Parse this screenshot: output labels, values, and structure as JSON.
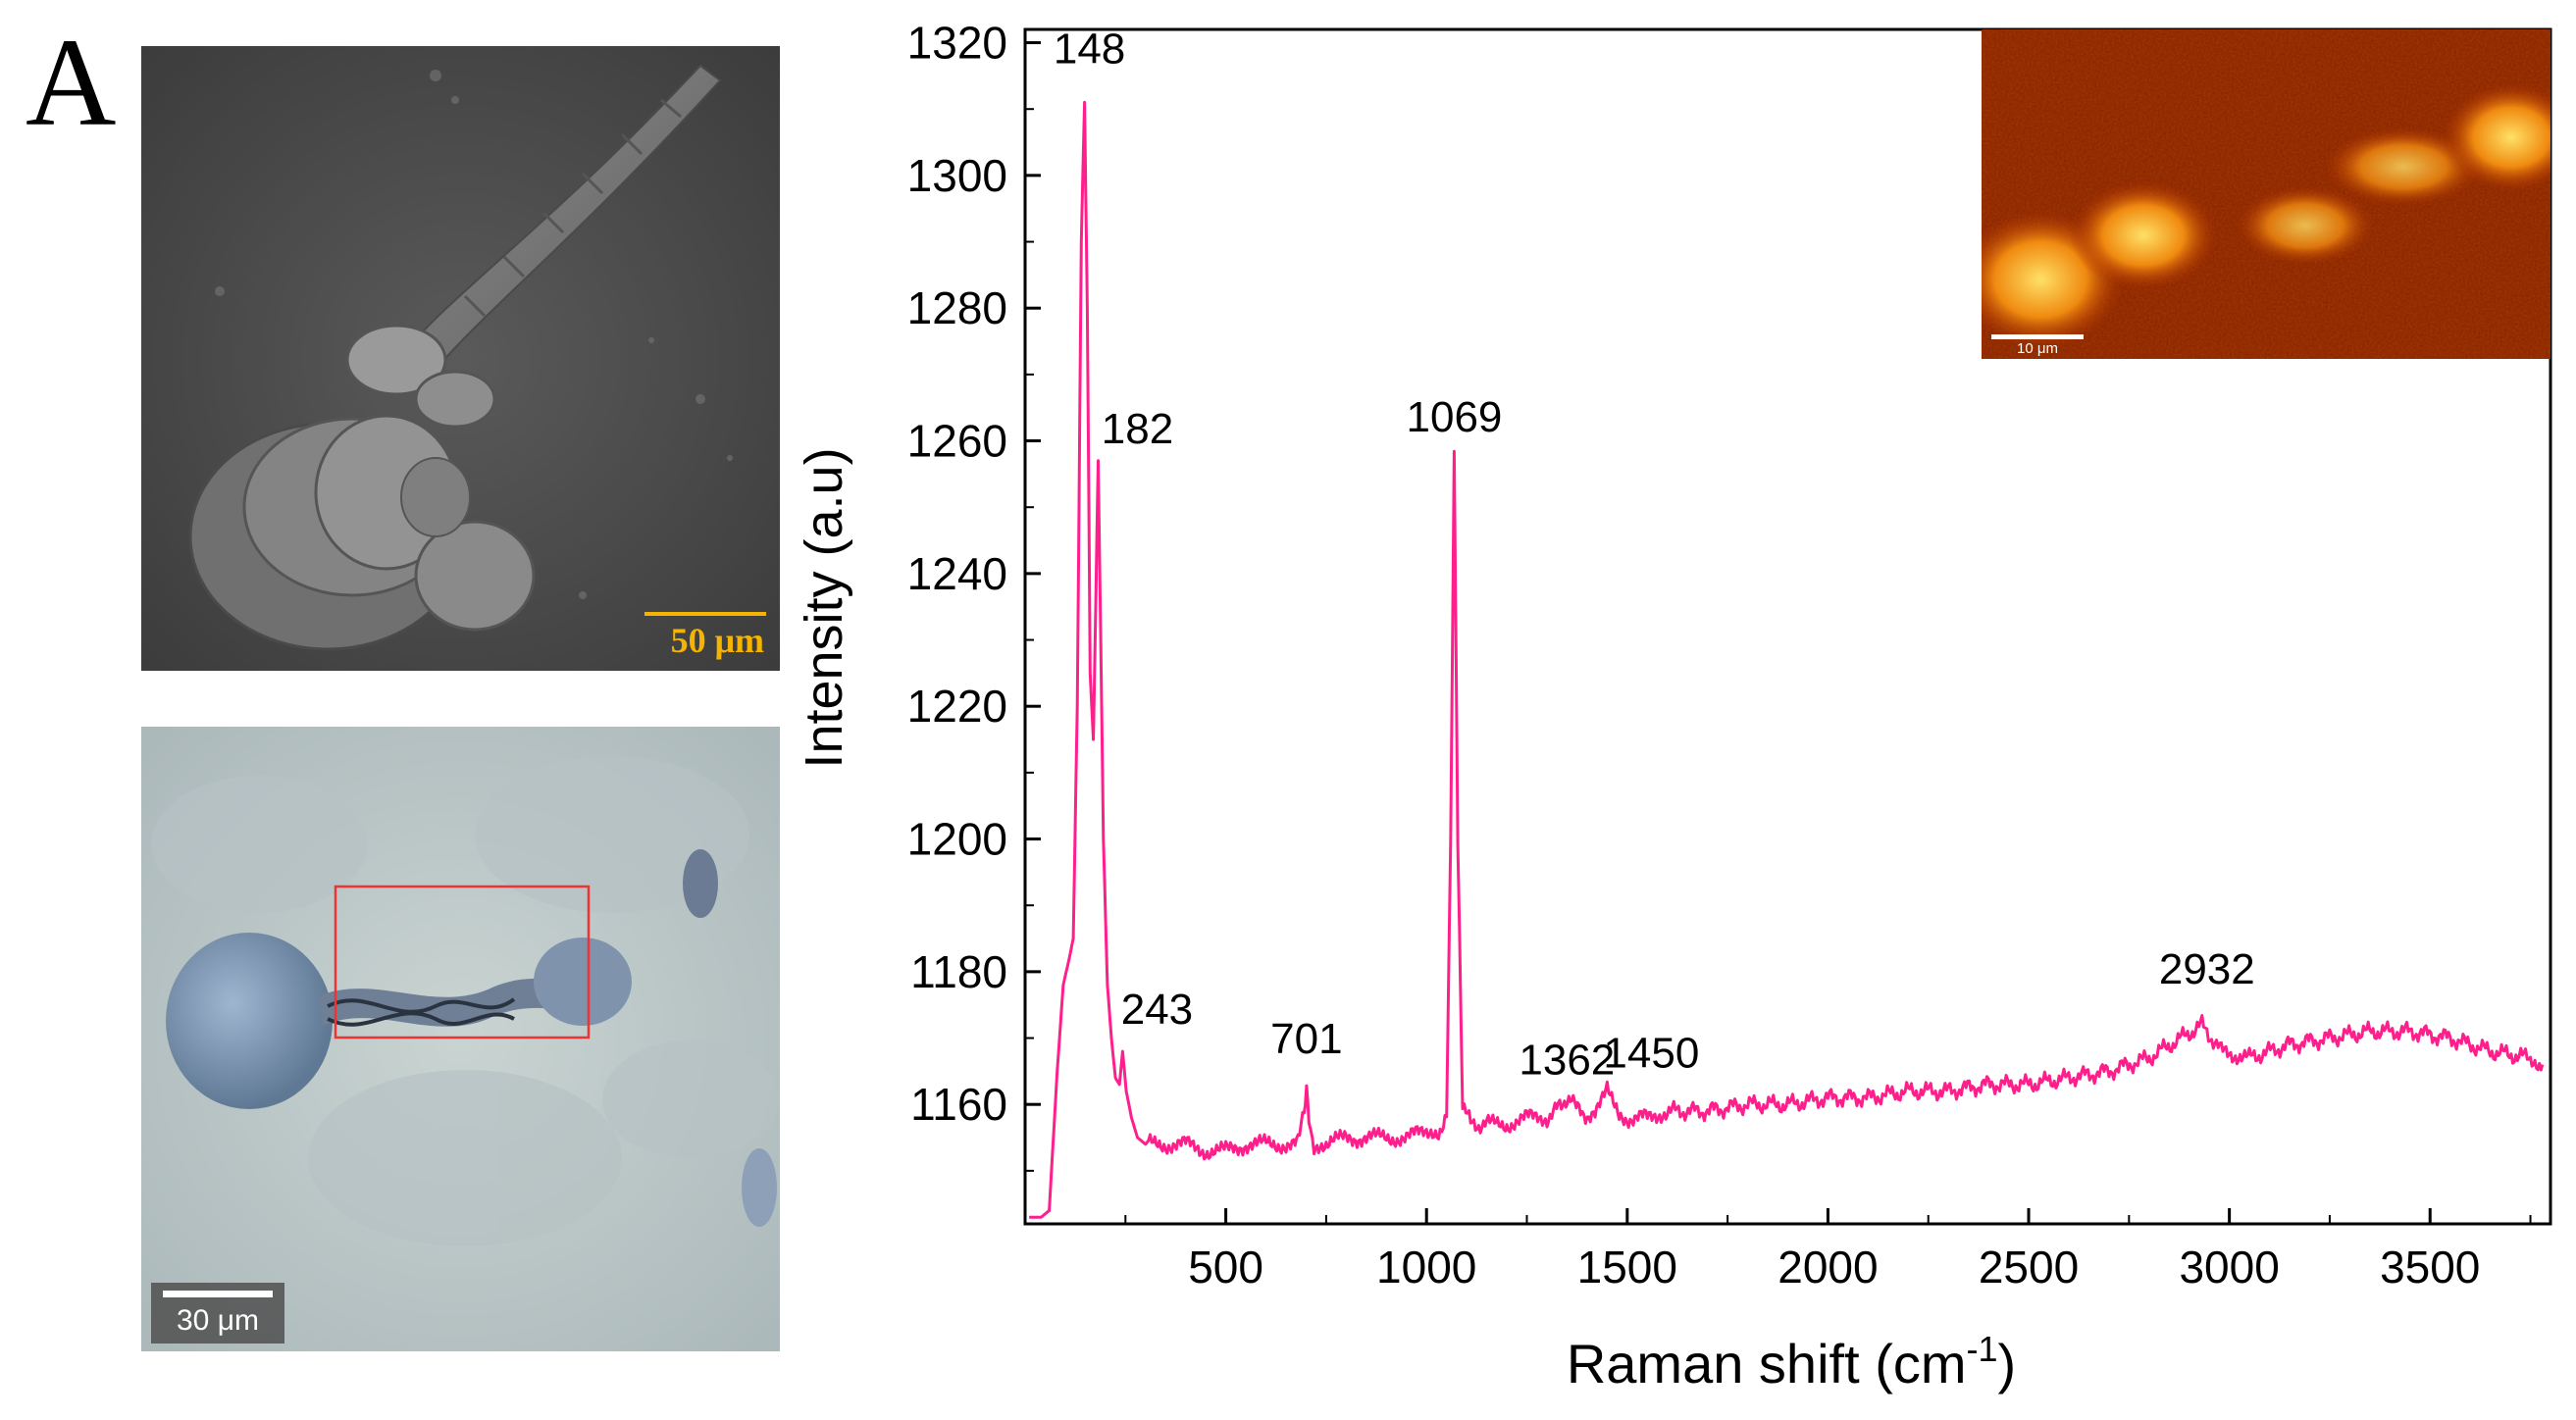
{
  "panel_label": "A",
  "sem_image": {
    "scale_label": "50 μm",
    "scale_color": "#f5b400"
  },
  "optical_image": {
    "scale_label": "30 μm"
  },
  "inset_image": {
    "scale_label": "10 μm"
  },
  "chart_data": {
    "type": "line",
    "title": "",
    "xlabel": "Raman shift (cm",
    "xlabel_sup": "-1",
    "xlabel_close": ")",
    "ylabel": "Intensity (a.u)",
    "xlim": [
      0,
      3800
    ],
    "ylim": [
      1142,
      1322
    ],
    "x_ticks": [
      500,
      1000,
      1500,
      2000,
      2500,
      3000,
      3500
    ],
    "y_ticks": [
      1160,
      1180,
      1200,
      1220,
      1240,
      1260,
      1280,
      1300,
      1320
    ],
    "line_color": "#ff1f8c",
    "grid": false,
    "peaks": [
      {
        "x": 148,
        "y": 1311,
        "label": "148"
      },
      {
        "x": 182,
        "y": 1257,
        "label": "182"
      },
      {
        "x": 243,
        "y": 1168,
        "label": "243"
      },
      {
        "x": 701,
        "y": 1163,
        "label": "701"
      },
      {
        "x": 1069,
        "y": 1257,
        "label": "1069"
      },
      {
        "x": 1362,
        "y": 1161,
        "label": "1362"
      },
      {
        "x": 1450,
        "y": 1162,
        "label": "1450"
      },
      {
        "x": 2932,
        "y": 1172,
        "label": "2932"
      }
    ],
    "series": [
      {
        "x": [
          10,
          40,
          60,
          80,
          95,
          110,
          120,
          130,
          140,
          148,
          155,
          162,
          170,
          176,
          182,
          188,
          195,
          205,
          215,
          225,
          235,
          243,
          252,
          265,
          280,
          300,
          350,
          400,
          450,
          500,
          550,
          600,
          650,
          680,
          695,
          701,
          707,
          720,
          750,
          800,
          850,
          900,
          950,
          1000,
          1030,
          1050,
          1060,
          1069,
          1078,
          1090,
          1110,
          1150,
          1200,
          1250,
          1300,
          1340,
          1362,
          1380,
          1420,
          1450,
          1480,
          1550,
          1600,
          1700,
          1800,
          1900,
          2000,
          2100,
          2200,
          2300,
          2400,
          2500,
          2600,
          2700,
          2800,
          2880,
          2932,
          2980,
          3050,
          3150,
          3250,
          3350,
          3450,
          3550,
          3650,
          3750,
          3780
        ],
        "y": [
          1143,
          1143,
          1144,
          1165,
          1178,
          1182,
          1185,
          1220,
          1290,
          1311,
          1280,
          1225,
          1215,
          1235,
          1257,
          1232,
          1200,
          1178,
          1170,
          1164,
          1163,
          1168,
          1162,
          1158,
          1155,
          1154,
          1154,
          1154,
          1153,
          1153,
          1154,
          1154,
          1154,
          1155,
          1159,
          1163,
          1157,
          1154,
          1154,
          1155,
          1155,
          1155,
          1155,
          1156,
          1156,
          1158,
          1200,
          1257,
          1200,
          1160,
          1157,
          1157,
          1157,
          1158,
          1158,
          1160,
          1161,
          1159,
          1158,
          1162,
          1158,
          1158,
          1159,
          1159,
          1160,
          1160,
          1161,
          1161,
          1162,
          1162,
          1163,
          1163,
          1164,
          1165,
          1167,
          1170,
          1172,
          1168,
          1167,
          1169,
          1170,
          1171,
          1171,
          1170,
          1168,
          1167,
          1166
        ]
      }
    ]
  }
}
